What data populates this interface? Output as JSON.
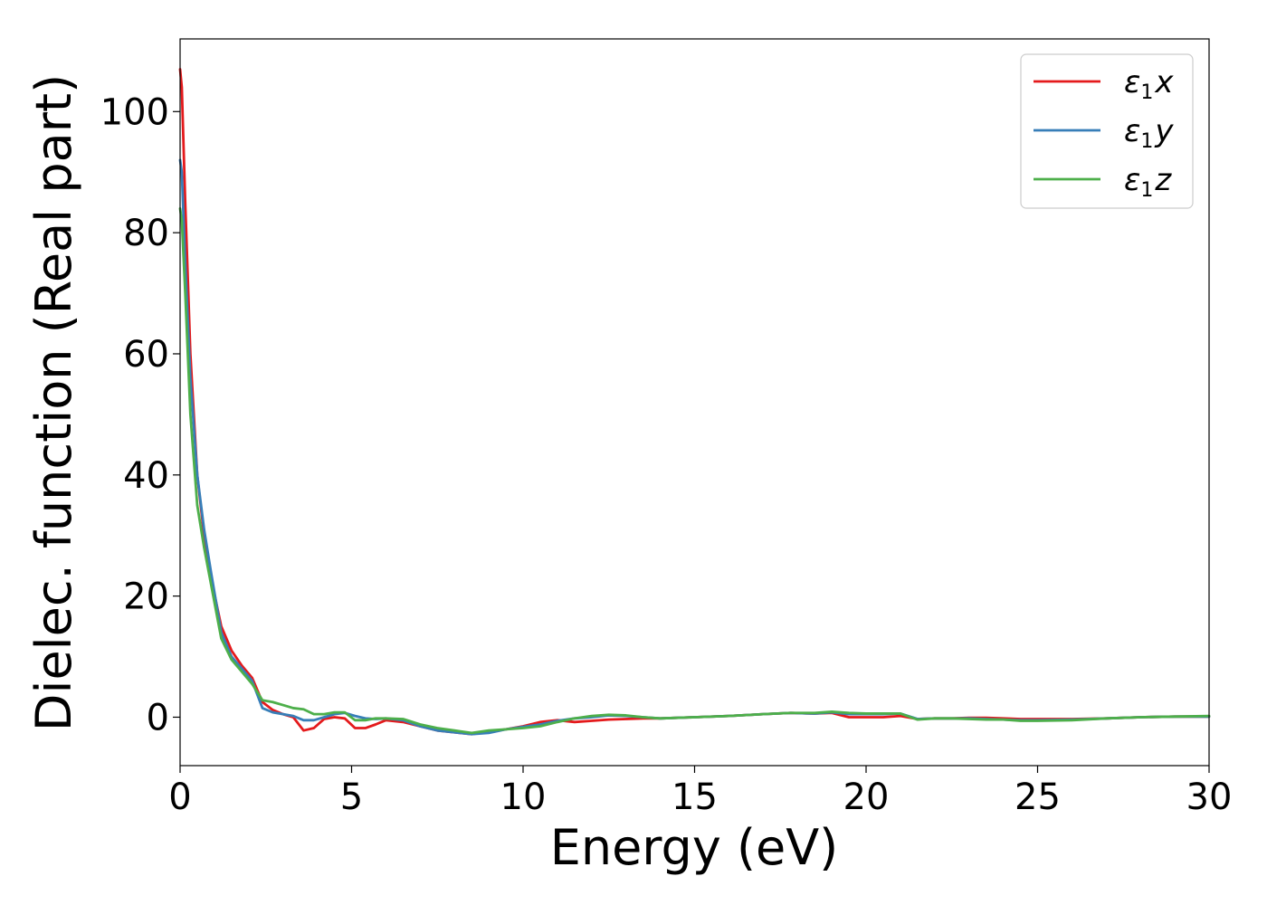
{
  "chart_data": {
    "type": "line",
    "xlabel": "Energy (eV)",
    "ylabel": "Dielec. function (Real part)",
    "xlim": [
      0,
      30
    ],
    "ylim": [
      -8,
      112
    ],
    "x_ticks": [
      "0",
      "5",
      "10",
      "15",
      "20",
      "25",
      "30"
    ],
    "y_ticks": [
      "0",
      "20",
      "40",
      "60",
      "80",
      "100"
    ],
    "grid": false,
    "legend_position": "top-right",
    "series": [
      {
        "name": "ε1x",
        "legend_main": "ε",
        "legend_sub": "1",
        "legend_suffix": "x",
        "color": "#e41a1c",
        "x": [
          0.0,
          0.05,
          0.15,
          0.3,
          0.5,
          0.7,
          0.9,
          1.2,
          1.5,
          1.8,
          2.1,
          2.4,
          2.7,
          3.0,
          3.3,
          3.6,
          3.9,
          4.2,
          4.5,
          4.8,
          5.1,
          5.4,
          5.7,
          6.0,
          6.5,
          7.0,
          7.5,
          8.0,
          8.5,
          9.0,
          9.5,
          10.0,
          10.5,
          11.0,
          11.5,
          12.0,
          12.5,
          13.0,
          13.5,
          14.0,
          15.0,
          16.0,
          17.0,
          17.8,
          18.5,
          19.0,
          19.5,
          20.0,
          20.5,
          21.0,
          21.5,
          22.0,
          22.5,
          23.0,
          23.5,
          24.0,
          24.5,
          25.0,
          26.0,
          27.0,
          28.0,
          29.0,
          30.0
        ],
        "y": [
          107,
          104,
          85,
          60,
          40,
          30,
          23,
          15,
          11,
          8.5,
          6.5,
          2.5,
          1.2,
          0.5,
          0.0,
          -2.2,
          -1.8,
          -0.3,
          0.0,
          -0.2,
          -1.8,
          -1.8,
          -1.2,
          -0.5,
          -0.8,
          -1.5,
          -2.2,
          -2.5,
          -2.8,
          -2.4,
          -2.0,
          -1.5,
          -0.8,
          -0.5,
          -0.8,
          -0.6,
          -0.4,
          -0.3,
          -0.2,
          -0.2,
          0.0,
          0.2,
          0.5,
          0.7,
          0.6,
          0.7,
          0.0,
          0.0,
          0.0,
          0.2,
          -0.3,
          -0.2,
          -0.2,
          -0.1,
          -0.1,
          -0.2,
          -0.3,
          -0.3,
          -0.3,
          -0.2,
          0.0,
          0.1,
          0.1
        ]
      },
      {
        "name": "ε1y",
        "legend_main": "ε",
        "legend_sub": "1",
        "legend_suffix": "y",
        "color": "#377eb8",
        "x": [
          0.0,
          0.05,
          0.15,
          0.3,
          0.5,
          0.7,
          0.9,
          1.2,
          1.5,
          1.8,
          2.1,
          2.4,
          2.7,
          3.0,
          3.3,
          3.6,
          3.9,
          4.2,
          4.5,
          4.8,
          5.1,
          5.4,
          5.7,
          6.0,
          6.5,
          7.0,
          7.5,
          8.0,
          8.5,
          9.0,
          9.5,
          10.0,
          10.5,
          11.0,
          11.5,
          12.0,
          12.5,
          13.0,
          13.5,
          14.0,
          15.0,
          16.0,
          17.0,
          17.8,
          18.5,
          19.0,
          19.5,
          20.0,
          20.5,
          21.0,
          21.5,
          22.0,
          22.5,
          23.0,
          23.5,
          24.0,
          24.5,
          25.0,
          26.0,
          27.0,
          28.0,
          29.0,
          30.0
        ],
        "y": [
          92,
          90,
          75,
          56,
          40,
          31,
          24,
          14,
          10,
          8,
          6,
          1.5,
          0.8,
          0.5,
          0.2,
          -0.5,
          -0.5,
          0.0,
          0.5,
          0.7,
          0.2,
          -0.2,
          -0.3,
          -0.2,
          -0.5,
          -1.5,
          -2.2,
          -2.5,
          -2.8,
          -2.6,
          -2.0,
          -1.6,
          -1.2,
          -0.6,
          -0.2,
          0.0,
          0.3,
          0.2,
          0.0,
          -0.2,
          0.0,
          0.2,
          0.5,
          0.7,
          0.6,
          0.8,
          0.5,
          0.5,
          0.5,
          0.6,
          -0.3,
          -0.2,
          -0.2,
          -0.2,
          -0.3,
          -0.4,
          -0.5,
          -0.5,
          -0.4,
          -0.2,
          0.0,
          0.1,
          0.1
        ]
      },
      {
        "name": "ε1z",
        "legend_main": "ε",
        "legend_sub": "1",
        "legend_suffix": "z",
        "color": "#4daf4a",
        "x": [
          0.0,
          0.05,
          0.15,
          0.3,
          0.5,
          0.7,
          0.9,
          1.2,
          1.5,
          1.8,
          2.1,
          2.4,
          2.7,
          3.0,
          3.3,
          3.6,
          3.9,
          4.2,
          4.5,
          4.8,
          5.1,
          5.4,
          5.7,
          6.0,
          6.5,
          7.0,
          7.5,
          8.0,
          8.5,
          9.0,
          9.5,
          10.0,
          10.5,
          11.0,
          11.5,
          12.0,
          12.5,
          13.0,
          13.5,
          14.0,
          15.0,
          16.0,
          17.0,
          17.8,
          18.5,
          19.0,
          19.5,
          20.0,
          20.5,
          21.0,
          21.5,
          22.0,
          22.5,
          23.0,
          23.5,
          24.0,
          24.5,
          25.0,
          26.0,
          27.0,
          28.0,
          29.0,
          30.0
        ],
        "y": [
          84,
          82,
          70,
          50,
          35,
          28,
          22,
          13,
          9.5,
          7.5,
          5.5,
          2.8,
          2.5,
          2.0,
          1.5,
          1.3,
          0.5,
          0.5,
          0.8,
          0.8,
          -0.5,
          -0.5,
          -0.2,
          -0.2,
          -0.3,
          -1.2,
          -1.8,
          -2.2,
          -2.6,
          -2.2,
          -2.0,
          -1.8,
          -1.5,
          -0.8,
          -0.2,
          0.2,
          0.4,
          0.3,
          0.0,
          -0.2,
          0.0,
          0.2,
          0.5,
          0.7,
          0.7,
          0.9,
          0.7,
          0.6,
          0.6,
          0.6,
          -0.4,
          -0.2,
          -0.2,
          -0.3,
          -0.4,
          -0.4,
          -0.6,
          -0.6,
          -0.5,
          -0.2,
          0.0,
          0.1,
          0.2
        ]
      }
    ]
  }
}
